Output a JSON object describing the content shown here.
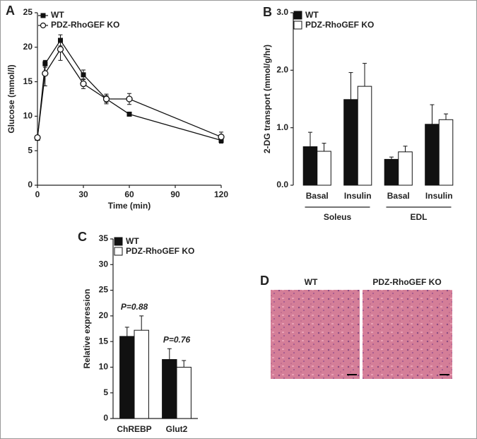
{
  "chart_data": [
    {
      "type": "line",
      "panel": "A",
      "xlabel": "Time (min)",
      "ylabel": "Glucose (mmol/l)",
      "x": [
        0,
        5,
        15,
        30,
        45,
        60,
        120
      ],
      "xlim": [
        0,
        120
      ],
      "xticks": [
        0,
        30,
        60,
        90,
        120
      ],
      "ylim": [
        0,
        25
      ],
      "yticks": [
        0,
        5,
        10,
        15,
        20,
        25
      ],
      "legend": "top-left",
      "series": [
        {
          "name": "WT",
          "color": "#111111",
          "marker": "square",
          "values": [
            6.8,
            17.6,
            21,
            16,
            12.5,
            10.3,
            6.5
          ],
          "errors": [
            0.3,
            0.5,
            0.8,
            0.7,
            0.5,
            0.3,
            0.4
          ]
        },
        {
          "name": "PDZ-RhoGEF KO",
          "color": "#ffffff",
          "marker": "circle",
          "values": [
            6.9,
            16.2,
            19.7,
            14.7,
            12.5,
            12.5,
            7
          ],
          "errors": [
            0.3,
            1.8,
            1.6,
            0.7,
            0.7,
            0.8,
            0.7
          ]
        }
      ]
    },
    {
      "type": "bar",
      "panel": "B",
      "ylabel": "2-DG transport (mmol/g/hr)",
      "categories": [
        "Basal",
        "Insulin",
        "Basal",
        "Insulin"
      ],
      "groups": [
        "Soleus",
        "EDL"
      ],
      "ylim": [
        0,
        3
      ],
      "yticks": [
        {
          "value": 0,
          "label": "0.0"
        },
        {
          "value": 1,
          "label": "1.0"
        },
        {
          "value": 2,
          "label": "2.0"
        },
        {
          "value": 3,
          "label": "3.0"
        }
      ],
      "legend": "top-left",
      "series": [
        {
          "name": "WT",
          "color": "#111111",
          "values": [
            0.67,
            1.49,
            0.45,
            1.06
          ],
          "errors": [
            0.25,
            0.47,
            0.04,
            0.34
          ]
        },
        {
          "name": "PDZ-RhoGEF KO",
          "color": "#ffffff",
          "values": [
            0.59,
            1.72,
            0.58,
            1.14
          ],
          "errors": [
            0.14,
            0.4,
            0.1,
            0.1
          ]
        }
      ]
    },
    {
      "type": "bar",
      "panel": "C",
      "ylabel": "Relative expression",
      "categories": [
        "ChREBP",
        "Glut2"
      ],
      "annotations": [
        "P=0.88",
        "P=0.76"
      ],
      "ylim": [
        0,
        35
      ],
      "yticks": [
        0,
        5,
        10,
        15,
        20,
        25,
        30,
        35
      ],
      "legend": "top-left",
      "series": [
        {
          "name": "WT",
          "color": "#111111",
          "values": [
            16,
            11.5
          ],
          "errors": [
            1.8,
            2.1
          ]
        },
        {
          "name": "PDZ-RhoGEF KO",
          "color": "#ffffff",
          "values": [
            17.2,
            10
          ],
          "errors": [
            2.8,
            1.3
          ]
        }
      ]
    }
  ],
  "panel_d": {
    "panel": "D",
    "images": [
      "WT",
      "PDZ-RhoGEF KO"
    ]
  }
}
